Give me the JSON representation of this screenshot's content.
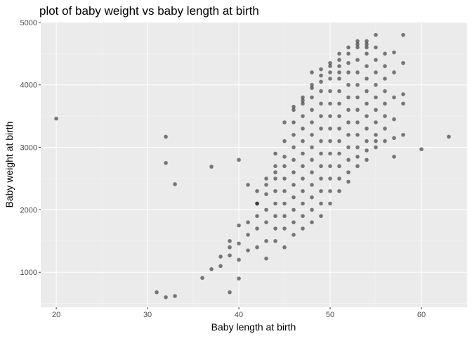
{
  "chart_data": {
    "type": "scatter",
    "title": "plot of baby weight vs baby length at birth",
    "xlabel": "Baby length at birth",
    "ylabel": "Baby weight at birth",
    "xlim": [
      18.3,
      65.0
    ],
    "ylim": [
      440,
      5010
    ],
    "x_ticks": [
      20,
      30,
      40,
      50,
      60
    ],
    "y_ticks": [
      1000,
      2000,
      3000,
      4000,
      5000
    ],
    "grid": true,
    "legend": "none",
    "colors": {
      "panel": "#ebebeb",
      "grid_major": "#ffffff",
      "point": "#000000",
      "text": "#000000",
      "tick_text": "#4d4d4d"
    },
    "point_alpha": 0.5,
    "x": [
      20,
      31,
      32,
      32,
      32,
      33,
      33,
      36,
      37,
      37,
      38,
      38,
      39,
      39,
      39,
      39,
      40,
      40,
      40,
      40,
      40,
      41,
      41,
      41,
      41,
      42,
      42,
      42,
      42,
      42,
      42,
      43,
      43,
      43,
      43,
      43,
      43,
      43,
      44,
      44,
      44,
      44,
      44,
      44,
      44,
      44,
      44,
      45,
      45,
      45,
      45,
      45,
      45,
      45,
      45,
      45,
      45,
      46,
      46,
      46,
      46,
      46,
      46,
      46,
      46,
      46,
      46,
      46,
      46,
      47,
      47,
      47,
      47,
      47,
      47,
      47,
      47,
      47,
      47,
      47,
      47,
      47,
      48,
      48,
      48,
      48,
      48,
      48,
      48,
      48,
      48,
      48,
      48,
      48,
      48,
      48,
      49,
      49,
      49,
      49,
      49,
      49,
      49,
      49,
      49,
      49,
      49,
      49,
      49,
      49,
      50,
      50,
      50,
      50,
      50,
      50,
      50,
      50,
      50,
      50,
      50,
      50,
      50,
      50,
      51,
      51,
      51,
      51,
      51,
      51,
      51,
      51,
      51,
      51,
      51,
      51,
      51,
      51,
      52,
      52,
      52,
      52,
      52,
      52,
      52,
      52,
      52,
      52,
      52,
      52,
      52,
      53,
      53,
      53,
      53,
      53,
      53,
      53,
      53,
      53,
      53,
      53,
      53,
      53,
      54,
      54,
      54,
      54,
      54,
      54,
      54,
      54,
      54,
      54,
      54,
      54,
      54,
      55,
      55,
      55,
      55,
      55,
      55,
      55,
      55,
      55,
      55,
      55,
      56,
      56,
      56,
      56,
      56,
      56,
      56,
      56,
      57,
      57,
      57,
      57,
      57,
      57,
      58,
      58,
      58,
      58,
      58,
      60,
      63
    ],
    "y": [
      3460,
      680,
      600,
      2750,
      3170,
      620,
      2410,
      910,
      1050,
      2690,
      1100,
      1250,
      680,
      1270,
      1400,
      1500,
      2800,
      900,
      1200,
      1460,
      1750,
      2400,
      1350,
      1600,
      1800,
      2100,
      1400,
      1700,
      1900,
      2100,
      2300,
      1220,
      1500,
      1800,
      2000,
      2250,
      2400,
      2500,
      1500,
      1700,
      1900,
      2100,
      2300,
      2500,
      2600,
      2700,
      2900,
      1400,
      1700,
      1900,
      2100,
      2300,
      2500,
      2700,
      2850,
      3100,
      3400,
      1600,
      1800,
      2000,
      2200,
      2400,
      2600,
      2800,
      3000,
      3200,
      3400,
      3600,
      3650,
      1700,
      1900,
      2100,
      2300,
      2500,
      2700,
      2900,
      3100,
      3300,
      3500,
      3700,
      3750,
      3800,
      1800,
      2000,
      2200,
      2400,
      2600,
      2800,
      3000,
      3200,
      3400,
      3600,
      3800,
      3950,
      4000,
      4200,
      1900,
      2100,
      2300,
      2500,
      2700,
      2900,
      3100,
      3300,
      3500,
      3700,
      3900,
      4050,
      4150,
      4250,
      2100,
      2300,
      2500,
      2700,
      2900,
      3100,
      3300,
      3500,
      3700,
      3900,
      4100,
      4200,
      4300,
      4350,
      2300,
      2500,
      2700,
      2900,
      3100,
      3300,
      3500,
      3700,
      3900,
      4100,
      4200,
      4300,
      4400,
      4500,
      2450,
      2600,
      2800,
      3000,
      3200,
      3400,
      3600,
      3800,
      4000,
      4200,
      4350,
      4500,
      4600,
      2700,
      2850,
      3000,
      3200,
      3400,
      3600,
      3800,
      4000,
      4200,
      4400,
      4600,
      4650,
      4700,
      2800,
      2950,
      3100,
      3300,
      3500,
      3700,
      3900,
      4100,
      4300,
      4500,
      4600,
      4650,
      4700,
      3000,
      3100,
      3200,
      3400,
      3600,
      3800,
      4000,
      4200,
      4400,
      4600,
      4800,
      3100,
      3300,
      3500,
      3700,
      3900,
      4100,
      4300,
      4500,
      2850,
      3150,
      3450,
      3800,
      4200,
      4520,
      3200,
      3700,
      3850,
      4350,
      4800,
      2970,
      3170
    ]
  }
}
